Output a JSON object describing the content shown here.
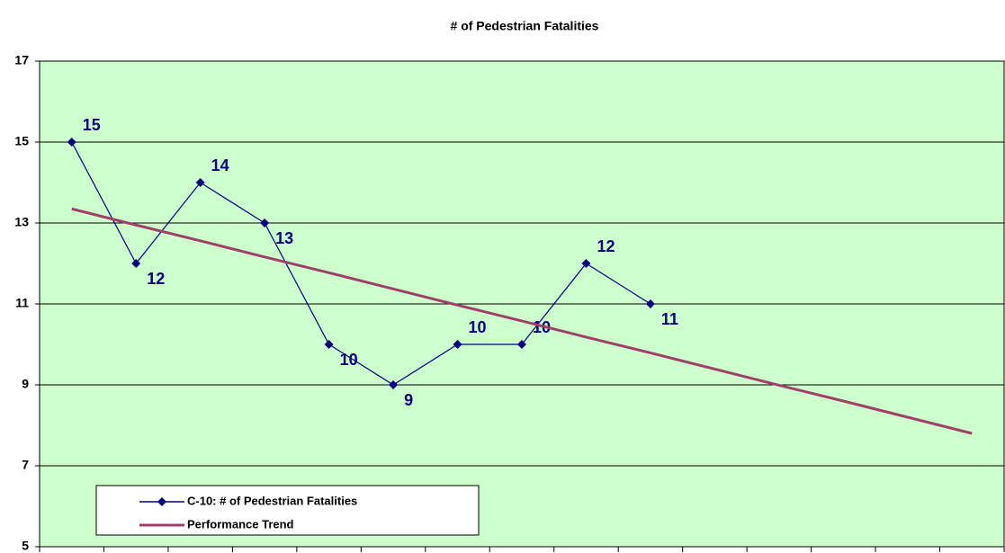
{
  "chart_data": {
    "type": "line",
    "title": "# of Pedestrian Fatalities",
    "categories": [
      null,
      null,
      null,
      null,
      null,
      null,
      null,
      null,
      null,
      null,
      null,
      null,
      null,
      null,
      null
    ],
    "series": [
      {
        "name": "C-10: # of Pedestrian Fatalities",
        "color": "#000080",
        "values": [
          15,
          12,
          14,
          13,
          10,
          9,
          10,
          10,
          12,
          11,
          null,
          null,
          null,
          null,
          null
        ]
      },
      {
        "name": "Performance Trend",
        "color": "#a0406a",
        "values": [
          13.35,
          12.95,
          12.56,
          12.16,
          11.77,
          11.37,
          10.97,
          10.58,
          10.18,
          9.79,
          9.39,
          8.99,
          8.6,
          8.2,
          7.8
        ]
      }
    ],
    "data_labels_series": 0,
    "ylim": [
      5,
      17
    ],
    "yticks": [
      5,
      7,
      9,
      11,
      13,
      15,
      17
    ],
    "grid": true,
    "legend": "lower left",
    "background": "#ccffcc"
  }
}
